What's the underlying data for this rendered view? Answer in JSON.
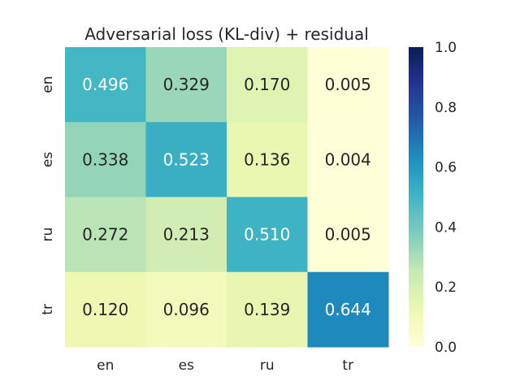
{
  "chart_data": {
    "type": "heatmap",
    "title": "Adversarial loss (KL-div) + residual",
    "xlabel": "",
    "ylabel": "",
    "x_categories": [
      "en",
      "es",
      "ru",
      "tr"
    ],
    "y_categories": [
      "en",
      "es",
      "ru",
      "tr"
    ],
    "values": [
      [
        0.496,
        0.329,
        0.17,
        0.005
      ],
      [
        0.338,
        0.523,
        0.136,
        0.004
      ],
      [
        0.272,
        0.213,
        0.51,
        0.005
      ],
      [
        0.12,
        0.096,
        0.139,
        0.644
      ]
    ],
    "cell_labels": [
      [
        "0.496",
        "0.329",
        "0.170",
        "0.005"
      ],
      [
        "0.338",
        "0.523",
        "0.136",
        "0.004"
      ],
      [
        "0.272",
        "0.213",
        "0.510",
        "0.005"
      ],
      [
        "0.120",
        "0.096",
        "0.139",
        "0.644"
      ]
    ],
    "colormap": "YlGnBu",
    "vmin": 0.0,
    "vmax": 1.0,
    "colorbar_ticks": [
      "0.0",
      "0.2",
      "0.4",
      "0.6",
      "0.8",
      "1.0"
    ],
    "colorbar_tick_values": [
      0.0,
      0.2,
      0.4,
      0.6,
      0.8,
      1.0
    ],
    "grid": false
  }
}
